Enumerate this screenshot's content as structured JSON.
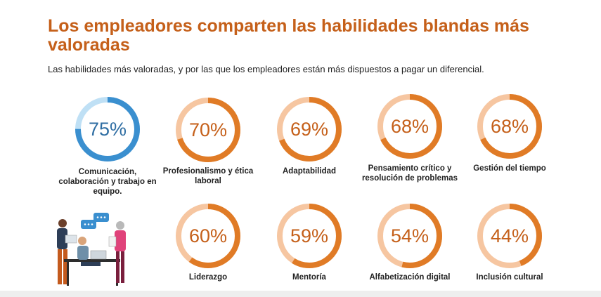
{
  "page": {
    "title": "Los empleadores comparten las habilidades blandas más valoradas",
    "subtitle": "Las habilidades más valoradas, y por las que los empleadores están más dispuestos a pagar un diferencial."
  },
  "colors": {
    "accent": "#c5601a",
    "ring_orange": "#e07b26",
    "ring_orange_light": "#f6c6a1",
    "ring_blue": "#3a8fcf",
    "ring_blue_light": "#bfe0f5"
  },
  "chart_data": {
    "type": "donut",
    "items": [
      {
        "label": "Comunicación, colaboración y trabajo en equipo.",
        "value": 75,
        "display": "75%",
        "color": "blue"
      },
      {
        "label": "Profesionalismo y ética laboral",
        "value": 70,
        "display": "70%",
        "color": "orange"
      },
      {
        "label": "Adaptabilidad",
        "value": 69,
        "display": "69%",
        "color": "orange"
      },
      {
        "label": "Pensamiento crítico y resolución de problemas",
        "value": 68,
        "display": "68%",
        "color": "orange"
      },
      {
        "label": "Gestión del tiempo",
        "value": 68,
        "display": "68%",
        "color": "orange"
      },
      {
        "label": "Liderazgo",
        "value": 60,
        "display": "60%",
        "color": "orange"
      },
      {
        "label": "Mentoría",
        "value": 59,
        "display": "59%",
        "color": "orange"
      },
      {
        "label": "Alfabetización digital",
        "value": 54,
        "display": "54%",
        "color": "orange"
      },
      {
        "label": "Inclusión cultural",
        "value": 44,
        "display": "44%",
        "color": "orange"
      }
    ]
  }
}
